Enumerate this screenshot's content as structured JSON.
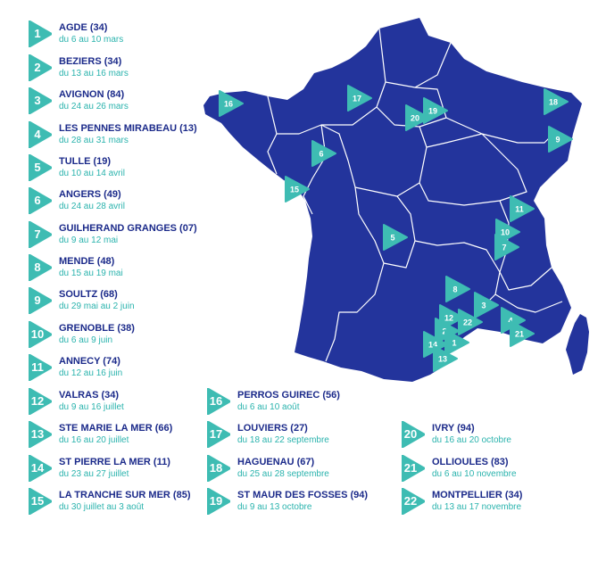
{
  "colors": {
    "brand_blue": "#23349c",
    "accent_teal": "#3ebcb3",
    "region_border": "#ffffff",
    "text_blue": "#1b2a8a",
    "text_teal": "#2ab3ad"
  },
  "icon": "triangle-play-badge",
  "events": [
    {
      "num": "1",
      "city": "AGDE (34)",
      "dates": "du 6 au 10 mars"
    },
    {
      "num": "2",
      "city": "BEZIERS (34)",
      "dates": "du 13 au 16 mars"
    },
    {
      "num": "3",
      "city": "AVIGNON (84)",
      "dates": "du 24 au 26 mars"
    },
    {
      "num": "4",
      "city": "LES PENNES MIRABEAU (13)",
      "dates": "du 28 au 31 mars"
    },
    {
      "num": "5",
      "city": "TULLE (19)",
      "dates": "du 10 au 14 avril"
    },
    {
      "num": "6",
      "city": "ANGERS (49)",
      "dates": "du 24 au 28 avril"
    },
    {
      "num": "7",
      "city": "GUILHERAND GRANGES (07)",
      "dates": "du 9 au 12 mai"
    },
    {
      "num": "8",
      "city": "MENDE (48)",
      "dates": "du 15 au 19 mai"
    },
    {
      "num": "9",
      "city": "SOULTZ (68)",
      "dates": "du 29 mai au 2 juin"
    },
    {
      "num": "10",
      "city": "GRENOBLE (38)",
      "dates": "du 6 au 9 juin"
    },
    {
      "num": "11",
      "city": "ANNECY (74)",
      "dates": "du 12 au 16 juin"
    },
    {
      "num": "12",
      "city": "VALRAS (34)",
      "dates": "du 9 au 16 juillet"
    },
    {
      "num": "13",
      "city": "STE MARIE LA MER (66)",
      "dates": "du 16 au 20 juillet"
    },
    {
      "num": "14",
      "city": "ST PIERRE LA MER (11)",
      "dates": "du 23 au 27 juillet"
    },
    {
      "num": "15",
      "city": "LA TRANCHE SUR MER (85)",
      "dates": "du 30 juillet au 3 août"
    },
    {
      "num": "16",
      "city": "PERROS GUIREC (56)",
      "dates": "du 6 au 10 août"
    },
    {
      "num": "17",
      "city": "LOUVIERS (27)",
      "dates": "du 18 au 22 septembre"
    },
    {
      "num": "18",
      "city": "HAGUENAU (67)",
      "dates": "du 25 au 28 septembre"
    },
    {
      "num": "19",
      "city": "ST MAUR DES FOSSES (94)",
      "dates": "du 9 au 13 octobre"
    },
    {
      "num": "20",
      "city": "IVRY (94)",
      "dates": "du 16 au 20 octobre"
    },
    {
      "num": "21",
      "city": "OLLIOULES (83)",
      "dates": "du 6 au 10 novembre"
    },
    {
      "num": "22",
      "city": "MONTPELLIER (34)",
      "dates": "du 13 au 17 novembre"
    }
  ],
  "map": {
    "markers": [
      "16",
      "17",
      "20",
      "19",
      "18",
      "9",
      "6",
      "15",
      "11",
      "5",
      "10",
      "7",
      "8",
      "3",
      "12",
      "22",
      "2",
      "4",
      "21",
      "1",
      "14",
      "13"
    ]
  }
}
